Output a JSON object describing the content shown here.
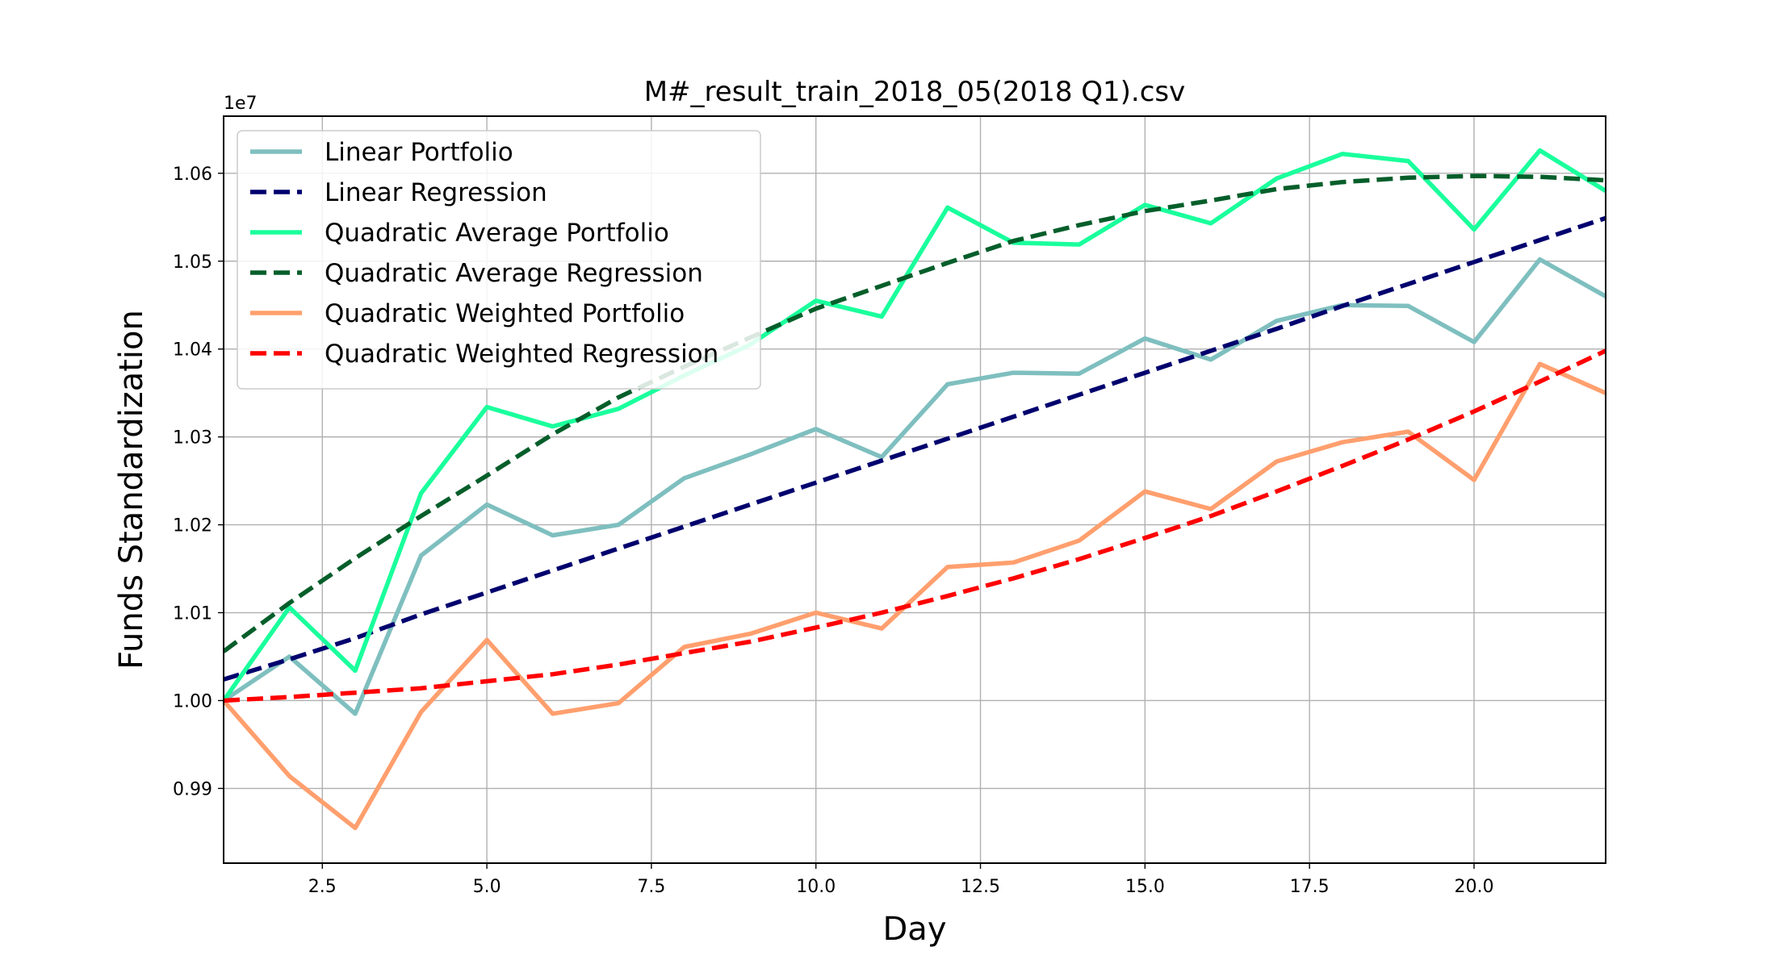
{
  "chart_data": {
    "type": "line",
    "title": "M#_result_train_2018_05(2018 Q1).csv",
    "xlabel": "Day",
    "ylabel": "Funds Standardization",
    "y_offset_label": "1e7",
    "xlim": [
      1,
      22
    ],
    "ylim": [
      0.9815,
      1.0665
    ],
    "x_ticks": [
      2.5,
      5.0,
      7.5,
      10.0,
      12.5,
      15.0,
      17.5,
      20.0
    ],
    "x_tick_labels": [
      "2.5",
      "5.0",
      "7.5",
      "10.0",
      "12.5",
      "15.0",
      "17.5",
      "20.0"
    ],
    "y_ticks": [
      0.99,
      1.0,
      1.01,
      1.02,
      1.03,
      1.04,
      1.05,
      1.06
    ],
    "y_tick_labels": [
      "0.99",
      "1.00",
      "1.01",
      "1.02",
      "1.03",
      "1.04",
      "1.05",
      "1.06"
    ],
    "grid": true,
    "legend_position": "top-left",
    "x": [
      1,
      2,
      3,
      4,
      5,
      6,
      7,
      8,
      9,
      10,
      11,
      12,
      13,
      14,
      15,
      16,
      17,
      18,
      19,
      20,
      21,
      22
    ],
    "series": [
      {
        "name": "Linear Portfolio",
        "style": "solid",
        "color": "#7fbfbf",
        "values": [
          1.0,
          1.005,
          0.9985,
          1.0165,
          1.0223,
          1.0188,
          1.02,
          1.0253,
          1.028,
          1.0309,
          1.0277,
          1.036,
          1.0373,
          1.0372,
          1.0412,
          1.0388,
          1.0432,
          1.045,
          1.0449,
          1.0408,
          1.0502,
          1.046
        ]
      },
      {
        "name": "Linear Regression",
        "style": "dashed",
        "color": "#00006e",
        "values": [
          1.0024,
          1.0047,
          1.0071,
          1.0098,
          1.0123,
          1.0148,
          1.0173,
          1.0198,
          1.0223,
          1.0248,
          1.0273,
          1.0298,
          1.0323,
          1.0348,
          1.0373,
          1.0398,
          1.0423,
          1.0449,
          1.0474,
          1.0499,
          1.0524,
          1.0549
        ]
      },
      {
        "name": "Quadratic Average Portfolio",
        "style": "solid",
        "color": "#1aff9c",
        "values": [
          1.0,
          1.0106,
          1.0034,
          1.0236,
          1.0334,
          1.0312,
          1.0332,
          1.037,
          1.0405,
          1.0455,
          1.0437,
          1.0561,
          1.0521,
          1.0519,
          1.0564,
          1.0543,
          1.0594,
          1.0622,
          1.0614,
          1.0536,
          1.0626,
          1.058
        ]
      },
      {
        "name": "Quadratic Average Regression",
        "style": "dashed",
        "color": "#055e2a",
        "values": [
          1.0056,
          1.0111,
          1.0162,
          1.021,
          1.0256,
          1.0303,
          1.0345,
          1.038,
          1.0413,
          1.0446,
          1.0472,
          1.0498,
          1.0523,
          1.0541,
          1.0557,
          1.0569,
          1.0582,
          1.059,
          1.0595,
          1.0597,
          1.0596,
          1.0592
        ]
      },
      {
        "name": "Quadratic Weighted Portfolio",
        "style": "solid",
        "color": "#ff9f6e",
        "values": [
          1.0,
          0.9914,
          0.9855,
          0.9987,
          1.0069,
          0.9985,
          0.9997,
          1.0061,
          1.0076,
          1.01,
          1.0082,
          1.0152,
          1.0157,
          1.0182,
          1.0238,
          1.0218,
          1.0272,
          1.0294,
          1.0306,
          1.0251,
          1.0383,
          1.035
        ]
      },
      {
        "name": "Quadratic Weighted Regression",
        "style": "dashed",
        "color": "#ff0000",
        "values": [
          1.0,
          1.0004,
          1.0009,
          1.0014,
          1.0022,
          1.003,
          1.0041,
          1.0054,
          1.0067,
          1.0083,
          1.01,
          1.0119,
          1.0139,
          1.0161,
          1.0185,
          1.021,
          1.0238,
          1.0267,
          1.0297,
          1.0329,
          1.0363,
          1.0398
        ]
      }
    ]
  }
}
